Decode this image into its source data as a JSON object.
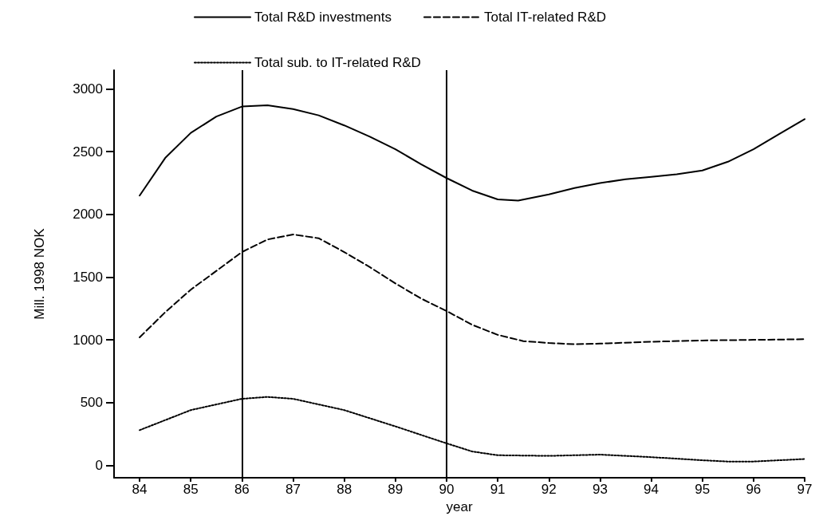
{
  "chart_data": {
    "type": "line",
    "xlabel": "year",
    "ylabel": "Mill. 1998 NOK",
    "xlim": [
      83.5,
      97
    ],
    "ylim": [
      -100,
      3150
    ],
    "xticks": [
      84,
      85,
      86,
      87,
      88,
      89,
      90,
      91,
      92,
      93,
      94,
      95,
      96,
      97
    ],
    "yticks": [
      0,
      500,
      1000,
      1500,
      2000,
      2500,
      3000
    ],
    "grid": false,
    "legend": "top",
    "marker": "none",
    "ref_lines": [
      {
        "axis": "x",
        "value": 86,
        "color": "#000000"
      },
      {
        "axis": "x",
        "value": 90,
        "color": "#000000"
      }
    ],
    "series": [
      {
        "name": "Total R&D investments",
        "color": "#000000",
        "line_style": "solid",
        "x": [
          84,
          84.5,
          85,
          85.5,
          86,
          86.5,
          87,
          87.5,
          88,
          88.5,
          89,
          89.5,
          90,
          90.5,
          91,
          91.4,
          92,
          92.5,
          93,
          93.5,
          94,
          94.5,
          95,
          95.5,
          96,
          96.5,
          97
        ],
        "values": [
          2150,
          2450,
          2650,
          2780,
          2860,
          2870,
          2840,
          2790,
          2710,
          2620,
          2520,
          2400,
          2290,
          2190,
          2120,
          2110,
          2160,
          2210,
          2250,
          2280,
          2300,
          2320,
          2350,
          2420,
          2520,
          2640,
          2760
        ]
      },
      {
        "name": "Total IT-related R&D",
        "color": "#000000",
        "line_style": "dashed",
        "x": [
          84,
          84.5,
          85,
          85.5,
          86,
          86.5,
          87,
          87.5,
          88,
          88.5,
          89,
          89.5,
          90,
          90.5,
          91,
          91.5,
          92,
          92.5,
          93,
          94,
          95,
          96,
          97
        ],
        "values": [
          1020,
          1220,
          1400,
          1550,
          1700,
          1800,
          1840,
          1810,
          1700,
          1580,
          1450,
          1330,
          1230,
          1120,
          1040,
          990,
          975,
          965,
          970,
          985,
          995,
          1000,
          1005
        ]
      },
      {
        "name": "Total sub. to IT-related R&D",
        "color": "#000000",
        "line_style": "dotted",
        "x": [
          84,
          85,
          86,
          86.5,
          87,
          88,
          89,
          90,
          90.5,
          91,
          92,
          93,
          94,
          95,
          95.5,
          96,
          97
        ],
        "values": [
          280,
          440,
          530,
          545,
          530,
          440,
          310,
          175,
          110,
          80,
          75,
          85,
          65,
          40,
          30,
          30,
          50
        ]
      }
    ]
  }
}
